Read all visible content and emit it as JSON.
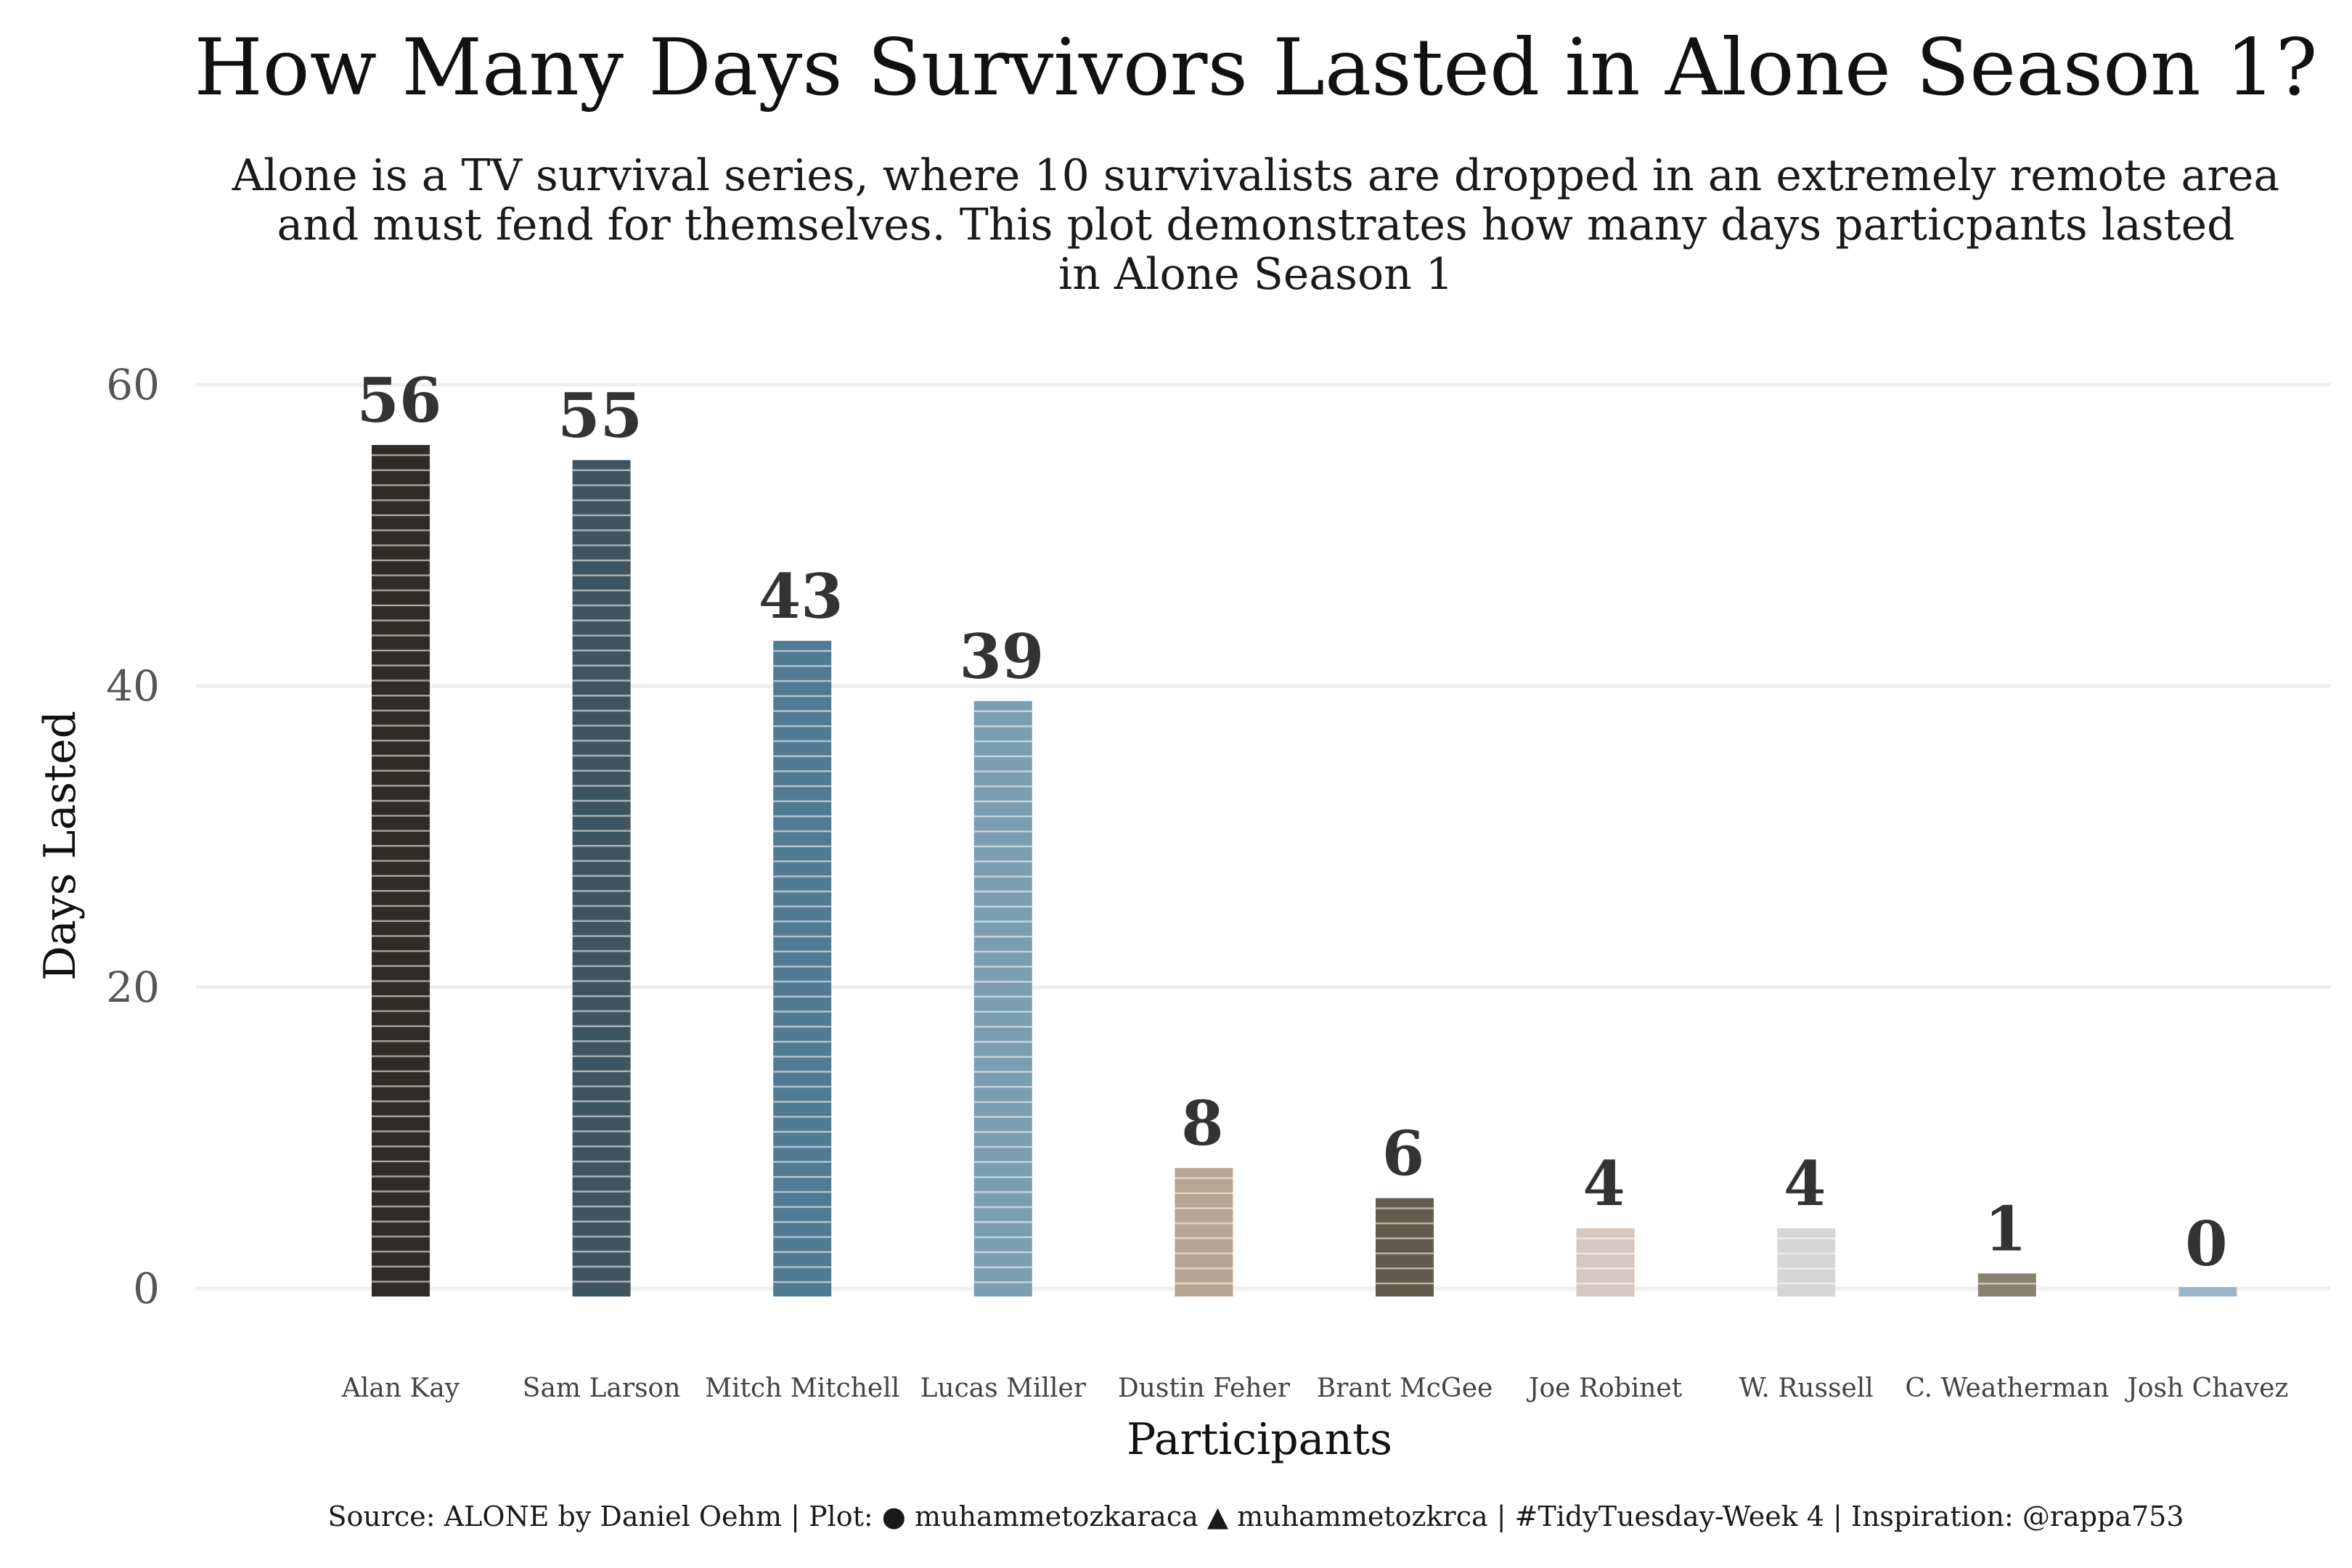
{
  "chart_data": {
    "type": "bar",
    "title": "How Many Days Survivors Lasted in Alone Season 1?",
    "subtitle": [
      "Alone is a TV survival series, where 10 survivalists are dropped in an extremely remote area",
      "and must fend for themselves. This plot demonstrates how many days particpants lasted",
      "in Alone Season 1"
    ],
    "xlabel": "Participants",
    "ylabel": "Days Lasted",
    "ylim": [
      0,
      60
    ],
    "yticks": [
      0,
      20,
      40,
      60
    ],
    "grid": "horizontal",
    "categories": [
      "Alan Kay",
      "Sam Larson",
      "Mitch Mitchell",
      "Lucas Miller",
      "Dustin Feher",
      "Brant McGee",
      "Joe Robinet",
      "W. Russell",
      "C. Weatherman",
      "Josh Chavez"
    ],
    "values": [
      56,
      55,
      43,
      39,
      8,
      6,
      4,
      4,
      1,
      0
    ],
    "colors": [
      "#2f2b27",
      "#3f5463",
      "#507b93",
      "#7a9db2",
      "#b9a592",
      "#655a4c",
      "#d6c8c0",
      "#d6d6d6",
      "#8a8271",
      "#9ab5c7"
    ]
  },
  "caption": "Source:  ALONE by Daniel Oehm |  Plot: ● muhammetozkaraca ▲ muhammetozkrca |  #TidyTuesday-Week 4 |  Inspiration: @rappa753"
}
